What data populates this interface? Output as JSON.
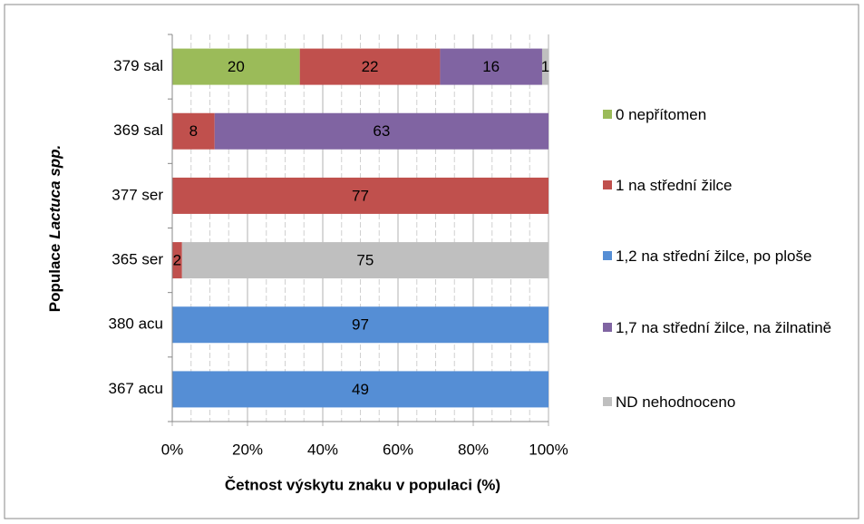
{
  "chart_data": {
    "type": "bar",
    "orientation": "horizontal",
    "stacking": "percent",
    "categories": [
      "379 sal",
      "369 sal",
      "377 ser",
      "365 ser",
      "380 acu",
      "367 acu"
    ],
    "series": [
      {
        "name": "0 nepřítomen",
        "color": "#9bbb59",
        "values": [
          20,
          null,
          null,
          null,
          null,
          null
        ]
      },
      {
        "name": "1 na střední žilce",
        "color": "#c0504d",
        "values": [
          22,
          8,
          77,
          2,
          null,
          null
        ]
      },
      {
        "name": "1,2 na střední žilce, po ploše",
        "color": "#558ed5",
        "values": [
          null,
          null,
          null,
          null,
          97,
          49
        ]
      },
      {
        "name": "1,7 na střední žilce, na žilnatině",
        "color": "#8064a2",
        "values": [
          16,
          63,
          null,
          null,
          null,
          null
        ]
      },
      {
        "name": "ND nehodnoceno",
        "color": "#bfbfbf",
        "values": [
          1,
          null,
          null,
          75,
          null,
          null
        ]
      }
    ],
    "xlim": [
      0,
      100
    ],
    "xticks": [
      {
        "value": 0,
        "label": "0%"
      },
      {
        "value": 20,
        "label": "20%"
      },
      {
        "value": 40,
        "label": "40%"
      },
      {
        "value": 60,
        "label": "60%"
      },
      {
        "value": 80,
        "label": "80%"
      },
      {
        "value": 100,
        "label": "100%"
      }
    ],
    "x_minor_ticks": [
      5,
      10,
      15,
      25,
      30,
      35,
      45,
      50,
      55,
      65,
      70,
      75,
      85,
      90,
      95
    ],
    "grid": true,
    "x_label": "Četnost výskytu znaku v populaci (%)",
    "y_label": [
      "Populace",
      "Lactuca spp."
    ],
    "legend": "right"
  }
}
